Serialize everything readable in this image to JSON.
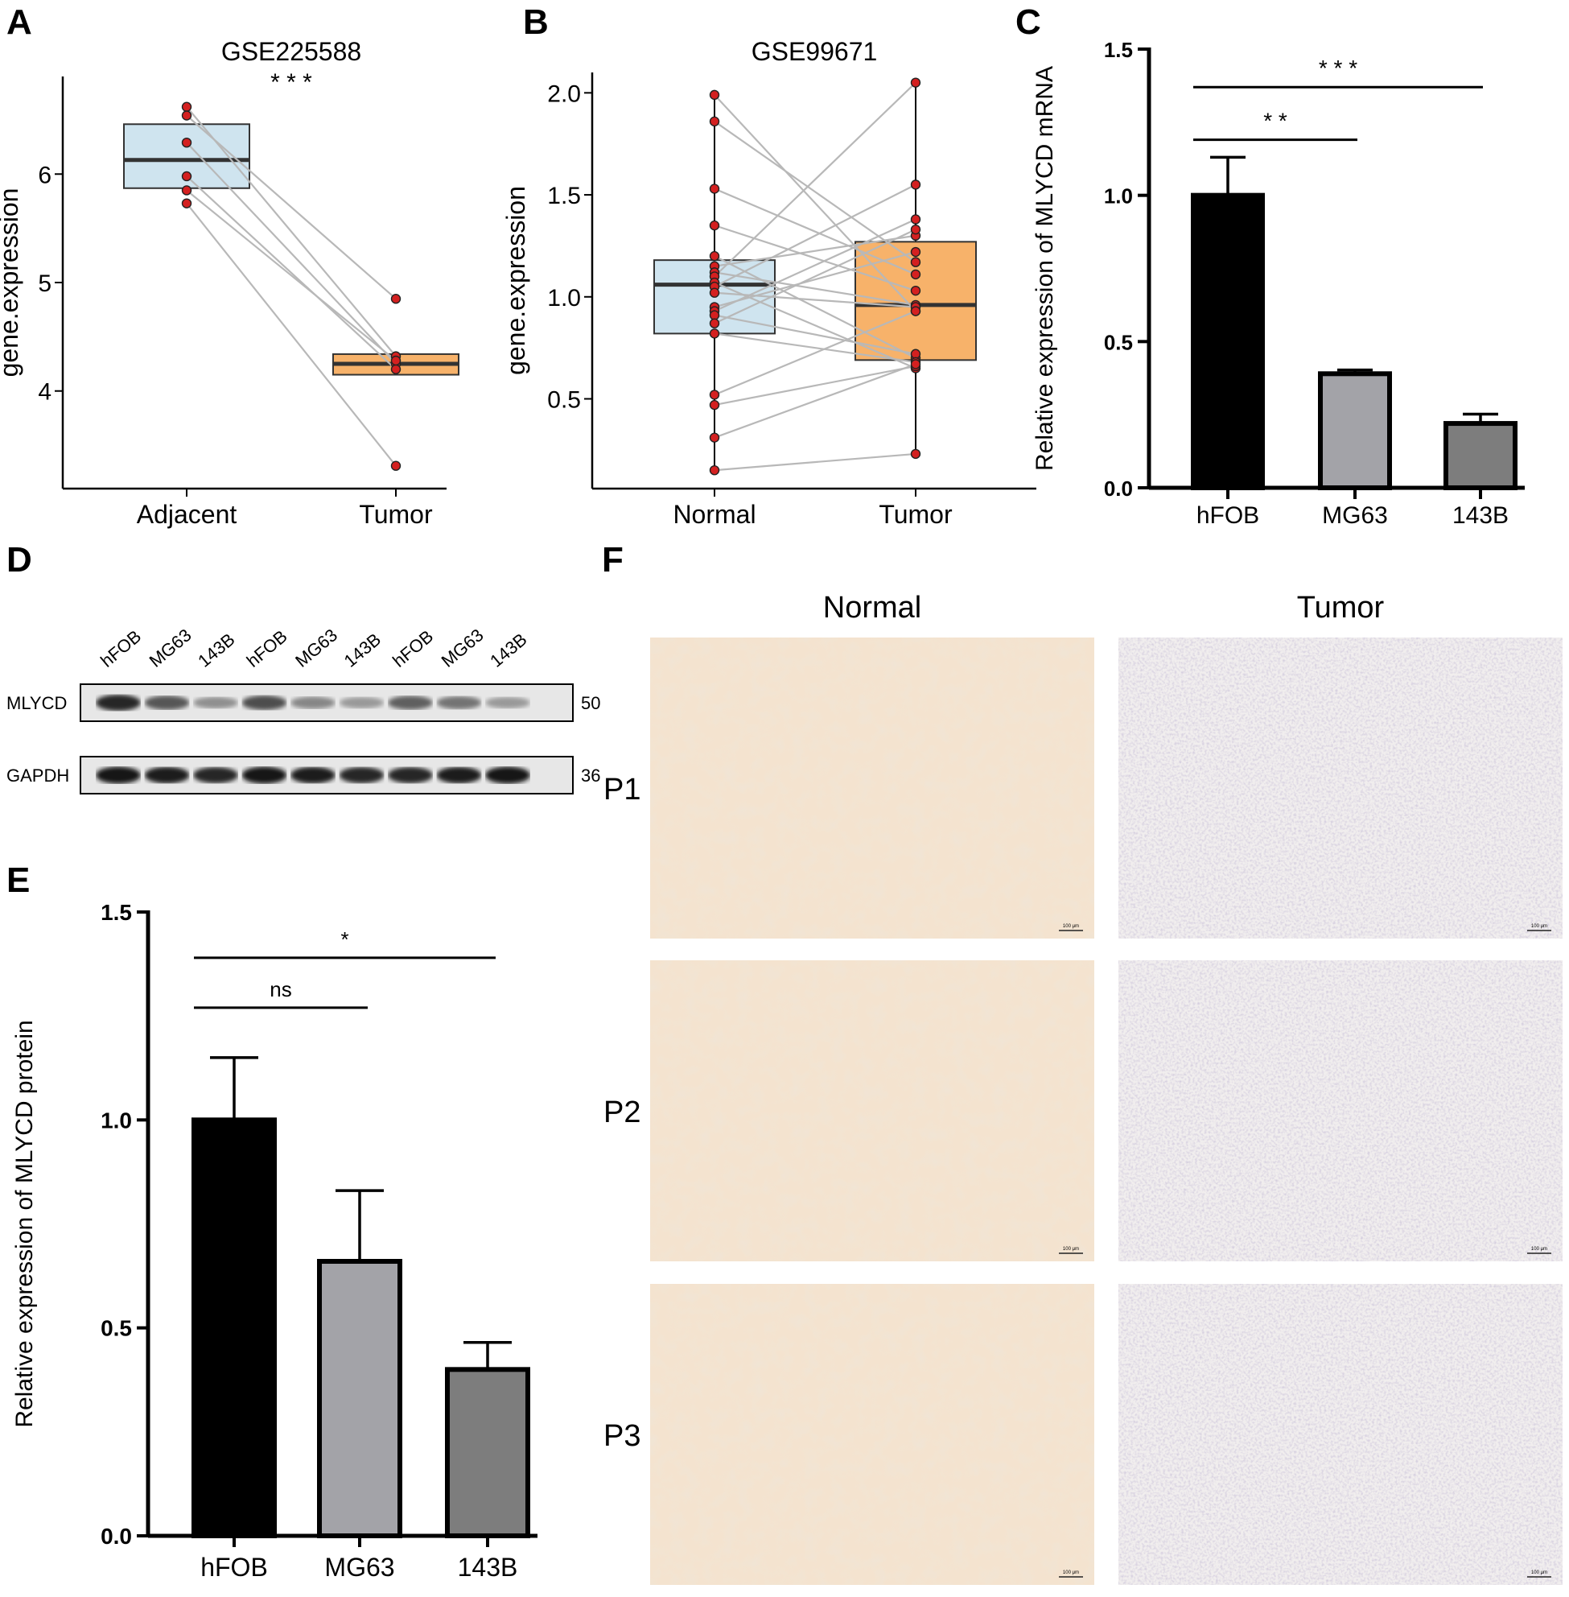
{
  "panels": {
    "A": {
      "letter": "A"
    },
    "B": {
      "letter": "B"
    },
    "C": {
      "letter": "C"
    },
    "D": {
      "letter": "D"
    },
    "E": {
      "letter": "E"
    },
    "F": {
      "letter": "F"
    }
  },
  "colors": {
    "normal_box": "#cfe4ef",
    "tumor_box": "#f7b26a",
    "dot": "#d42020",
    "line": "#b8b8b8",
    "bar_hfob": "#000000",
    "bar_mg63": "#a3a3a8",
    "bar_143b": "#7d7d7d"
  },
  "chart_data": [
    {
      "panel": "A",
      "type": "box-paired",
      "title": "GSE225588",
      "significance": "* * *",
      "ylabel": "gene.expression",
      "ylim": [
        3.1,
        6.9
      ],
      "yticks": [
        4,
        5,
        6
      ],
      "categories": [
        "Adjacent",
        "Tumor"
      ],
      "boxes": [
        {
          "category": "Adjacent",
          "q1": 5.87,
          "median": 6.13,
          "q3": 6.46
        },
        {
          "category": "Tumor",
          "q1": 4.15,
          "median": 4.25,
          "q3": 4.34
        }
      ],
      "pairs": [
        [
          6.62,
          4.32
        ],
        [
          6.54,
          4.85
        ],
        [
          6.29,
          4.25
        ],
        [
          5.98,
          4.2
        ],
        [
          5.85,
          4.28
        ],
        [
          5.73,
          3.31
        ]
      ]
    },
    {
      "panel": "B",
      "type": "box-paired",
      "title": "GSE99671",
      "significance": "",
      "ylabel": "gene.expression",
      "ylim": [
        0.06,
        2.1
      ],
      "yticks": [
        0.5,
        1.0,
        1.5,
        2.0
      ],
      "ytick_labels": [
        "0.5",
        "1.0",
        "1.5",
        "2.0"
      ],
      "categories": [
        "Normal",
        "Tumor"
      ],
      "boxes": [
        {
          "category": "Normal",
          "q1": 0.82,
          "median": 1.06,
          "q3": 1.18,
          "whisker_low": 0.15,
          "whisker_high": 1.99
        },
        {
          "category": "Tumor",
          "q1": 0.69,
          "median": 0.96,
          "q3": 1.27,
          "whisker_low": 0.23,
          "whisker_high": 2.05
        }
      ],
      "pairs": [
        [
          1.99,
          0.93
        ],
        [
          1.86,
          1.17
        ],
        [
          1.53,
          1.11
        ],
        [
          1.35,
          1.03
        ],
        [
          1.2,
          0.7
        ],
        [
          1.15,
          1.3
        ],
        [
          1.12,
          0.96
        ],
        [
          1.1,
          2.05
        ],
        [
          1.07,
          0.65
        ],
        [
          1.05,
          1.55
        ],
        [
          1.02,
          0.95
        ],
        [
          0.95,
          1.22
        ],
        [
          0.93,
          1.38
        ],
        [
          0.91,
          0.72
        ],
        [
          0.87,
          1.33
        ],
        [
          0.82,
          0.68
        ],
        [
          0.52,
          0.93
        ],
        [
          0.47,
          0.66
        ],
        [
          0.31,
          0.67
        ],
        [
          0.15,
          0.23
        ]
      ]
    },
    {
      "panel": "C",
      "type": "bar",
      "ylabel": "Relative expression of MLYCD mRNA",
      "ylim": [
        0,
        1.5
      ],
      "yticks": [
        0,
        0.5,
        1.0,
        1.5
      ],
      "ytick_labels": [
        "0.0",
        "0.5",
        "1.0",
        "1.5"
      ],
      "categories": [
        "hFOB",
        "MG63",
        "143B"
      ],
      "values": [
        1.0,
        0.39,
        0.22
      ],
      "errors": [
        0.13,
        0.013,
        0.032
      ],
      "comparisons": [
        {
          "from": 0,
          "to": 1,
          "label": "* *",
          "level": 1.19
        },
        {
          "from": 0,
          "to": 2,
          "label": "* * *",
          "level": 1.37
        }
      ]
    },
    {
      "panel": "E",
      "type": "bar",
      "ylabel": "Relative expression of MLYCD protein",
      "ylim": [
        0,
        1.5
      ],
      "yticks": [
        0,
        0.5,
        1.0,
        1.5
      ],
      "ytick_labels": [
        "0.0",
        "0.5",
        "1.0",
        "1.5"
      ],
      "categories": [
        "hFOB",
        "MG63",
        "143B"
      ],
      "values": [
        1.0,
        0.66,
        0.4
      ],
      "errors": [
        0.15,
        0.17,
        0.065
      ],
      "comparisons": [
        {
          "from": 0,
          "to": 1,
          "label": "ns",
          "level": 1.27
        },
        {
          "from": 0,
          "to": 2,
          "label": "*",
          "level": 1.39
        }
      ]
    }
  ],
  "western_blot": {
    "lanes": [
      "hFOB",
      "MG63",
      "143B",
      "hFOB",
      "MG63",
      "143B",
      "hFOB",
      "MG63",
      "143B"
    ],
    "rows": [
      {
        "protein": "MLYCD",
        "size": "50",
        "intensities": [
          0.85,
          0.6,
          0.3,
          0.65,
          0.35,
          0.25,
          0.55,
          0.45,
          0.25
        ]
      },
      {
        "protein": "GAPDH",
        "size": "36",
        "intensities": [
          0.95,
          0.9,
          0.85,
          0.95,
          0.9,
          0.85,
          0.85,
          0.9,
          0.95
        ]
      }
    ]
  },
  "histology": {
    "columns": [
      "Normal",
      "Tumor"
    ],
    "rows": [
      "P1",
      "P2",
      "P3"
    ],
    "scale_bar": "100 μm"
  }
}
